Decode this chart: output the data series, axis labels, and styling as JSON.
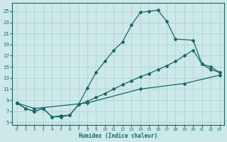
{
  "xlabel": "Humidex (Indice chaleur)",
  "bg_color": "#cce8e8",
  "grid_color": "#a8d0d0",
  "line_color": "#1a6666",
  "xlim": [
    -0.5,
    23.5
  ],
  "ylim": [
    4.5,
    26.5
  ],
  "xticks": [
    0,
    1,
    2,
    3,
    4,
    5,
    6,
    7,
    8,
    9,
    10,
    11,
    12,
    13,
    14,
    15,
    16,
    17,
    18,
    19,
    20,
    21,
    22,
    23
  ],
  "yticks": [
    5,
    7,
    9,
    11,
    13,
    15,
    17,
    19,
    21,
    23,
    25
  ],
  "curve1_x": [
    0,
    1,
    2,
    3,
    4,
    5,
    6,
    7,
    8,
    9,
    10,
    11,
    12,
    13,
    14,
    15,
    16,
    17,
    18,
    20,
    21,
    22,
    23
  ],
  "curve1_y": [
    8.5,
    7.5,
    7.0,
    7.5,
    6.0,
    6.0,
    6.3,
    8.2,
    11.2,
    14.0,
    16.0,
    18.0,
    19.5,
    22.5,
    24.8,
    25.0,
    25.2,
    23.2,
    20.0,
    19.8,
    15.5,
    14.5,
    14.0
  ],
  "curve2_x": [
    0,
    1,
    2,
    3,
    4,
    5,
    6,
    7,
    8,
    9,
    10,
    11,
    12,
    13,
    14,
    15,
    16,
    17,
    18,
    19,
    20,
    21,
    22,
    23
  ],
  "curve2_y": [
    8.5,
    7.5,
    7.0,
    7.5,
    6.0,
    6.2,
    6.3,
    8.2,
    8.8,
    9.5,
    10.2,
    11.0,
    11.8,
    12.5,
    13.2,
    13.8,
    14.5,
    15.2,
    16.0,
    17.0,
    18.0,
    15.5,
    15.0,
    14.0
  ],
  "curve3_x": [
    0,
    2,
    8,
    14,
    19,
    23
  ],
  "curve3_y": [
    8.5,
    7.5,
    8.5,
    11.0,
    12.0,
    13.5
  ]
}
